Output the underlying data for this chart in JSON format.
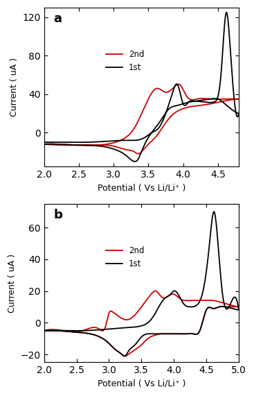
{
  "panel_a": {
    "label": "a",
    "xlim": [
      2.0,
      4.8
    ],
    "ylim": [
      -35,
      130
    ],
    "yticks": [
      0,
      40,
      80,
      120
    ],
    "xticks": [
      2.0,
      2.5,
      3.0,
      3.5,
      4.0,
      4.5
    ],
    "ylabel": "Current ( uA )",
    "xlabel": "Potential ( Vs Li/Li⁺ )"
  },
  "panel_b": {
    "label": "b",
    "xlim": [
      2.0,
      5.0
    ],
    "ylim": [
      -25,
      75
    ],
    "yticks": [
      -20,
      0,
      20,
      40,
      60
    ],
    "xticks": [
      2.0,
      2.5,
      3.0,
      3.5,
      4.0,
      4.5,
      5.0
    ],
    "ylabel": "Current ( uA )",
    "xlabel": "Potential ( Vs Li/Li⁺ )"
  },
  "line_colors": {
    "1st": "#000000",
    "2nd": "#cc0000"
  },
  "legend_labels": [
    "1st",
    "2nd"
  ],
  "background_color": "#ffffff",
  "linewidth": 1.3
}
